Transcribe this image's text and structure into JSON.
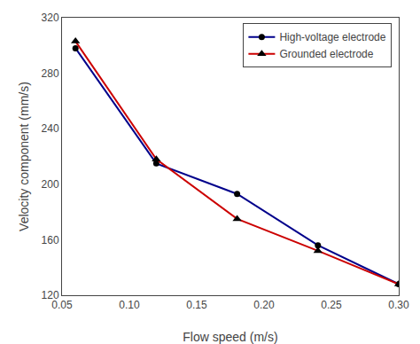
{
  "chart_data": {
    "type": "line",
    "x_label": "Flow speed (m/s)",
    "y_label": "Velocity component (mm/s)",
    "x": [
      0.06,
      0.12,
      0.18,
      0.24,
      0.3
    ],
    "series": [
      {
        "name": "High-voltage electrode",
        "color": "#00008B",
        "marker": "circle",
        "values": [
          298,
          215,
          193,
          156,
          128
        ]
      },
      {
        "name": "Grounded electrode",
        "color": "#CC0000",
        "marker": "triangle-up",
        "values": [
          303,
          218,
          175,
          152,
          128
        ]
      }
    ],
    "xlim": [
      0.05,
      0.3
    ],
    "xticks": [
      0.05,
      {
        "value": 0.1,
        "label": "0.10"
      },
      0.15,
      {
        "value": 0.2,
        "label": "0.20"
      },
      0.25,
      {
        "value": 0.3,
        "label": "0.30"
      }
    ],
    "ylim": [
      120,
      320
    ],
    "yticks": [
      120,
      160,
      200,
      240,
      280,
      320
    ],
    "grid": false,
    "legend": "upper right"
  }
}
